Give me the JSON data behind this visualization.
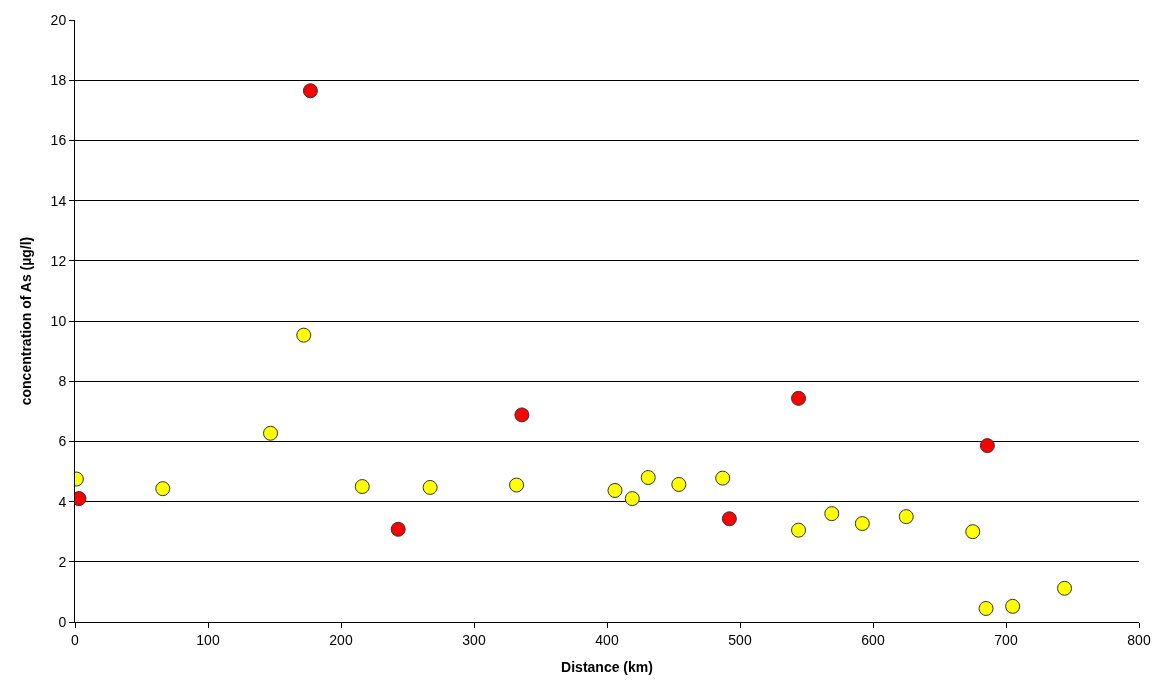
{
  "chart_data": {
    "type": "scatter",
    "xlabel": "Distance (km)",
    "ylabel": "concentration of As (µg/l)",
    "series": [
      {
        "color": "#ffff00",
        "x": [
          1,
          66,
          147,
          172,
          216,
          267,
          332,
          406,
          419,
          431,
          454,
          487,
          544,
          569,
          592,
          625,
          675,
          685,
          705,
          744
        ],
        "values": [
          4.75,
          4.43,
          6.27,
          9.53,
          4.5,
          4.47,
          4.55,
          4.37,
          4.1,
          4.8,
          4.57,
          4.78,
          3.05,
          3.6,
          3.27,
          3.5,
          3.0,
          0.45,
          0.52,
          1.12
        ]
      },
      {
        "color": "#ff0000",
        "x": [
          3,
          177,
          243,
          336,
          492,
          544,
          686
        ],
        "values": [
          4.1,
          17.65,
          3.08,
          6.88,
          3.43,
          7.43,
          5.86
        ]
      }
    ],
    "xlim": [
      0,
      800
    ],
    "xticks": [
      0,
      100,
      200,
      300,
      400,
      500,
      600,
      700,
      800
    ],
    "ylim": [
      0,
      20
    ],
    "yticks": [
      0,
      2,
      4,
      6,
      8,
      10,
      12,
      14,
      16,
      18,
      20
    ],
    "grid": "y",
    "marker": "circle"
  }
}
